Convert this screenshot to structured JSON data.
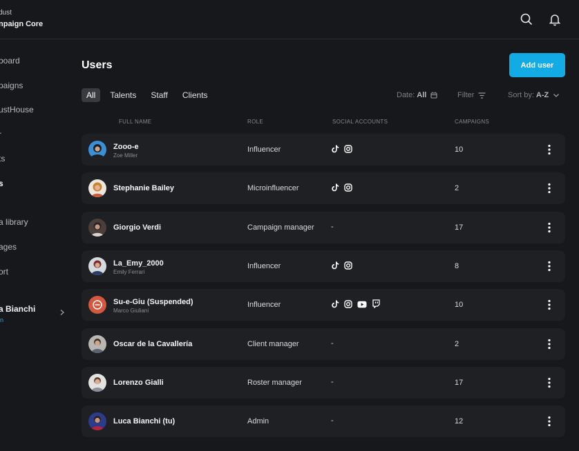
{
  "brand": {
    "org": "dust",
    "app": "npaign Core"
  },
  "sidebar": {
    "items": [
      {
        "label": "board"
      },
      {
        "label": "paigns"
      },
      {
        "label": "ustHouse"
      },
      {
        "label": "r"
      },
      {
        "label": "ts"
      },
      {
        "label": "s"
      },
      {
        "label": "a library"
      },
      {
        "label": "ages"
      },
      {
        "label": "ort"
      }
    ],
    "user": {
      "name": "a Bianchi",
      "role": "in"
    }
  },
  "main": {
    "title": "Users",
    "add_button": "Add user",
    "tabs": [
      "All",
      "Talents",
      "Staff",
      "Clients"
    ],
    "date_label": "Date:",
    "date_value": "All",
    "filter_label": "Filter",
    "sort_label": "Sort by:",
    "sort_value": "A-Z",
    "columns": [
      "FULL NAME",
      "ROLE",
      "SOCIAL ACCOUNTS",
      "CAMPAIGNS"
    ]
  },
  "users": [
    {
      "name": "Zooo-e",
      "sub": "Zoe Miller",
      "role": "Influencer",
      "social": [
        "tiktok-icon",
        "instagram-icon"
      ],
      "campaigns": "10"
    },
    {
      "name": "Stephanie Bailey",
      "sub": "",
      "role": "Microinfluencer",
      "social": [
        "tiktok-icon",
        "instagram-icon"
      ],
      "campaigns": "2"
    },
    {
      "name": "Giorgio Verdi",
      "sub": "",
      "role": "Campaign manager",
      "social": [],
      "social_empty": "-",
      "campaigns": "17"
    },
    {
      "name": "La_Emy_2000",
      "sub": "Emily Ferrari",
      "role": "Influencer",
      "social": [
        "tiktok-icon",
        "instagram-icon"
      ],
      "campaigns": "8"
    },
    {
      "name": "Su-e-Giu (Suspended)",
      "sub": "Marco Giuliani",
      "role": "Influencer",
      "social": [
        "tiktok-icon",
        "instagram-icon",
        "youtube-icon",
        "twitch-icon"
      ],
      "campaigns": "10"
    },
    {
      "name": "Oscar de la Cavallería",
      "sub": "",
      "role": "Client manager",
      "social": [],
      "social_empty": "-",
      "campaigns": "2"
    },
    {
      "name": "Lorenzo Gialli",
      "sub": "",
      "role": "Roster manager",
      "social": [],
      "social_empty": "-",
      "campaigns": "17"
    },
    {
      "name": "Luca Bianchi (tu)",
      "sub": "",
      "role": "Admin",
      "social": [],
      "social_empty": "-",
      "campaigns": "12"
    }
  ],
  "colors": {
    "accent": "#12abe6",
    "background": "#17181b",
    "row": "#1f2024"
  }
}
